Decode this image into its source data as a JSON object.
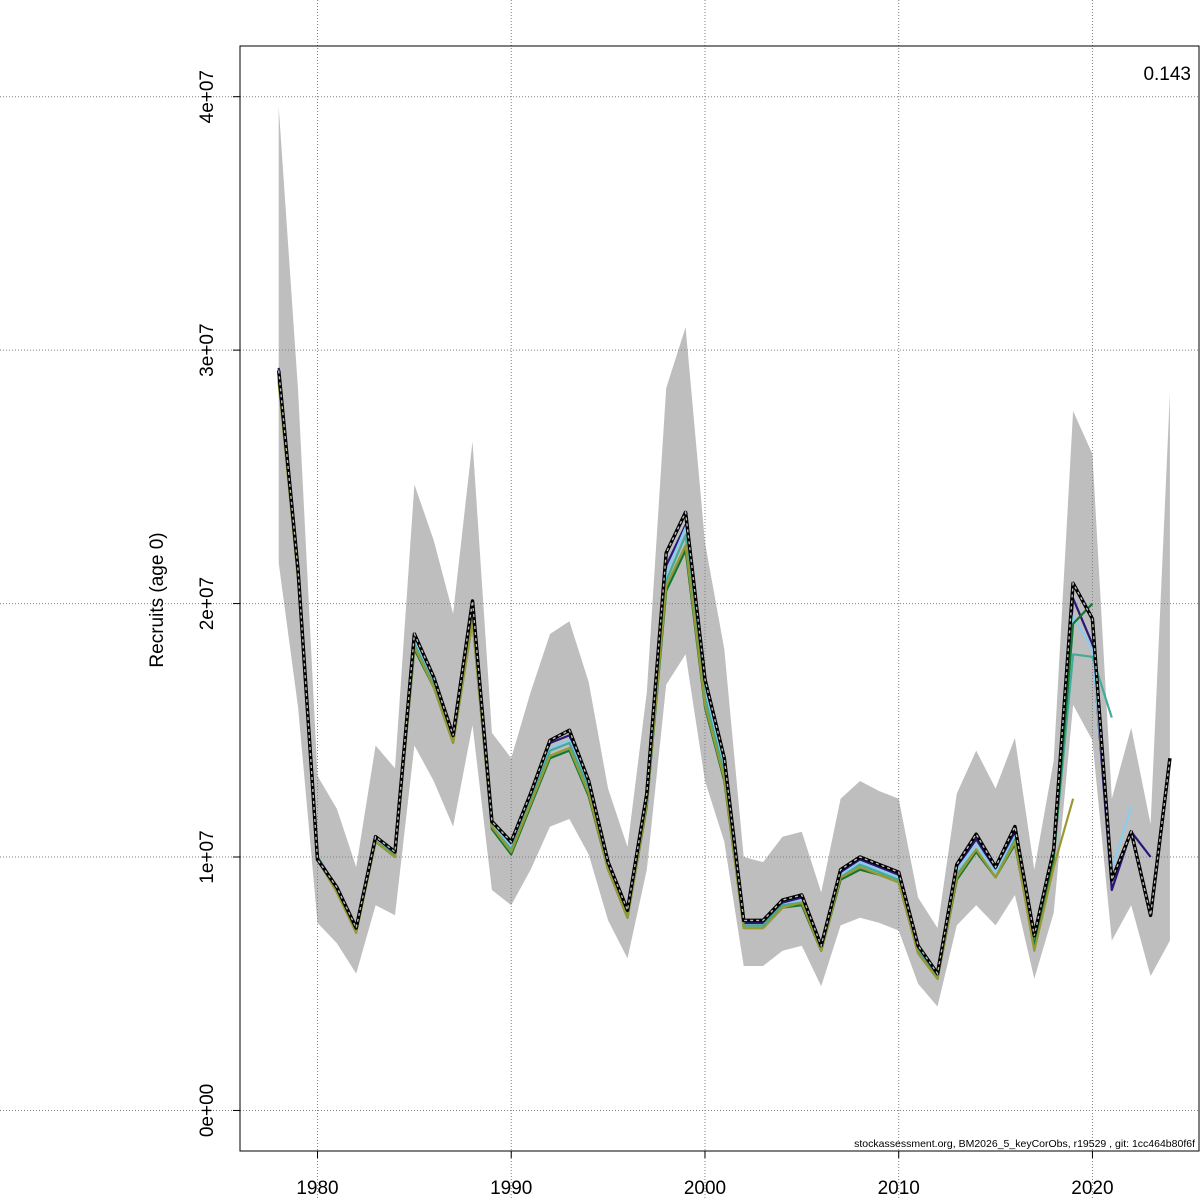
{
  "chart_data": {
    "type": "line",
    "title": "",
    "ylabel": "Recruits (age 0)",
    "xlabel": "",
    "xlim": [
      1976,
      2025.5
    ],
    "ylim": [
      -1600000,
      42000000
    ],
    "x_ticks": [
      1980,
      1990,
      2000,
      2010,
      2020
    ],
    "x_tick_labels": [
      "1980",
      "1990",
      "2000",
      "2010",
      "2020"
    ],
    "y_ticks": [
      0,
      10000000,
      20000000,
      30000000,
      40000000
    ],
    "y_tick_labels": [
      "0e+00",
      "1e+07",
      "2e+07",
      "3e+07",
      "4e+07"
    ],
    "grid": true,
    "corner_label": "0.143",
    "footer": "stockassessment.org, BM2026_5_keyCorObs, r19529 , git: 1cc464b80f6f",
    "colors": {
      "band": "#bebebe",
      "base": "#000000",
      "base_overlay": "#bdbdbd",
      "grid": "#808080"
    },
    "confidence_band": {
      "name": "",
      "x": [
        1978,
        1979,
        1980,
        1981,
        1982,
        1983,
        1984,
        1985,
        1986,
        1987,
        1988,
        1989,
        1990,
        1991,
        1992,
        1993,
        1994,
        1995,
        1996,
        1997,
        1998,
        1999,
        2000,
        2001,
        2002,
        2003,
        2004,
        2005,
        2006,
        2007,
        2008,
        2009,
        2010,
        2011,
        2012,
        2013,
        2014,
        2015,
        2016,
        2017,
        2018,
        2019,
        2020,
        2021,
        2022,
        2023,
        2024
      ],
      "lower": [
        21600000,
        15900000,
        7400000,
        6600000,
        5400000,
        8100000,
        7700000,
        14400000,
        13000000,
        11200000,
        15200000,
        8700000,
        8100000,
        9500000,
        11200000,
        11500000,
        10100000,
        7500000,
        6000000,
        9500000,
        16800000,
        18000000,
        13000000,
        10600000,
        5700000,
        5700000,
        6300000,
        6500000,
        4900000,
        7300000,
        7600000,
        7400000,
        7100000,
        5000000,
        4100000,
        7300000,
        8100000,
        7300000,
        8500000,
        5200000,
        7800000,
        16000000,
        14600000,
        6700000,
        8100000,
        5300000,
        6700000
      ],
      "upper": [
        39600000,
        28400000,
        13200000,
        11900000,
        9600000,
        14400000,
        13500000,
        24700000,
        22500000,
        19600000,
        26400000,
        14900000,
        13900000,
        16500000,
        18800000,
        19300000,
        16900000,
        12700000,
        10400000,
        16500000,
        28500000,
        30900000,
        22400000,
        18200000,
        10000000,
        9800000,
        10800000,
        11000000,
        8600000,
        12300000,
        13000000,
        12600000,
        12300000,
        8400000,
        7200000,
        12500000,
        14200000,
        12700000,
        14700000,
        9500000,
        13800000,
        27600000,
        25900000,
        12300000,
        15100000,
        11300000,
        28300000
      ]
    },
    "series": [
      {
        "name": "",
        "color": "#000000",
        "dashed": true,
        "x": [
          1978,
          1979,
          1980,
          1981,
          1982,
          1983,
          1984,
          1985,
          1986,
          1987,
          1988,
          1989,
          1990,
          1991,
          1992,
          1993,
          1994,
          1995,
          1996,
          1997,
          1998,
          1999,
          2000,
          2001,
          2002,
          2003,
          2004,
          2005,
          2006,
          2007,
          2008,
          2009,
          2010,
          2011,
          2012,
          2013,
          2014,
          2015,
          2016,
          2017,
          2018,
          2019,
          2020,
          2021,
          2022,
          2023,
          2024
        ],
        "values": [
          29200000,
          21300000,
          9900000,
          8800000,
          7200000,
          10800000,
          10200000,
          18800000,
          17100000,
          14800000,
          20100000,
          11400000,
          10600000,
          12500000,
          14600000,
          15000000,
          13000000,
          9800000,
          7900000,
          12500000,
          22000000,
          23600000,
          17000000,
          13900000,
          7500000,
          7500000,
          8300000,
          8500000,
          6500000,
          9500000,
          10000000,
          9700000,
          9400000,
          6500000,
          5400000,
          9700000,
          10900000,
          9600000,
          11200000,
          6900000,
          10300000,
          20800000,
          19400000,
          9100000,
          11000000,
          7700000,
          13900000
        ]
      },
      {
        "name": "",
        "color": "#2b1578",
        "dashed": false,
        "x": [
          1978,
          1979,
          1980,
          1981,
          1982,
          1983,
          1984,
          1985,
          1986,
          1987,
          1988,
          1989,
          1990,
          1991,
          1992,
          1993,
          1994,
          1995,
          1996,
          1997,
          1998,
          1999,
          2000,
          2001,
          2002,
          2003,
          2004,
          2005,
          2006,
          2007,
          2008,
          2009,
          2010,
          2011,
          2012,
          2013,
          2014,
          2015,
          2016,
          2017,
          2018,
          2019,
          2020,
          2021,
          2022,
          2023
        ],
        "values": [
          29300000,
          21200000,
          10000000,
          8800000,
          7100000,
          10700000,
          10100000,
          18700000,
          17000000,
          14700000,
          19900000,
          11300000,
          10500000,
          12400000,
          14500000,
          14800000,
          12900000,
          9700000,
          7800000,
          12400000,
          21500000,
          23100000,
          16800000,
          13700000,
          7400000,
          7400000,
          8200000,
          8400000,
          6400000,
          9400000,
          9900000,
          9600000,
          9300000,
          6400000,
          5300000,
          9600000,
          10700000,
          9500000,
          11000000,
          6800000,
          10200000,
          20200000,
          18400000,
          8700000,
          11000000,
          10000000
        ]
      },
      {
        "name": "",
        "color": "#88ccee",
        "dashed": false,
        "x": [
          1978,
          1979,
          1980,
          1981,
          1982,
          1983,
          1984,
          1985,
          1986,
          1987,
          1988,
          1989,
          1990,
          1991,
          1992,
          1993,
          1994,
          1995,
          1996,
          1997,
          1998,
          1999,
          2000,
          2001,
          2002,
          2003,
          2004,
          2005,
          2006,
          2007,
          2008,
          2009,
          2010,
          2011,
          2012,
          2013,
          2014,
          2015,
          2016,
          2017,
          2018,
          2019,
          2020,
          2021,
          2022
        ],
        "values": [
          29000000,
          21100000,
          10000000,
          8700000,
          7100000,
          10700000,
          10100000,
          18600000,
          16900000,
          14700000,
          19700000,
          11300000,
          10400000,
          12300000,
          14300000,
          14600000,
          12800000,
          9700000,
          7800000,
          12300000,
          21200000,
          23000000,
          16500000,
          13500000,
          7300000,
          7300000,
          8100000,
          8300000,
          6400000,
          9300000,
          9800000,
          9500000,
          9200000,
          6400000,
          5200000,
          9500000,
          10500000,
          9400000,
          10800000,
          6800000,
          10100000,
          19500000,
          18200000,
          9500000,
          12000000
        ]
      },
      {
        "name": "",
        "color": "#44aa99",
        "dashed": false,
        "x": [
          1978,
          1979,
          1980,
          1981,
          1982,
          1983,
          1984,
          1985,
          1986,
          1987,
          1988,
          1989,
          1990,
          1991,
          1992,
          1993,
          1994,
          1995,
          1996,
          1997,
          1998,
          1999,
          2000,
          2001,
          2002,
          2003,
          2004,
          2005,
          2006,
          2007,
          2008,
          2009,
          2010,
          2011,
          2012,
          2013,
          2014,
          2015,
          2016,
          2017,
          2018,
          2019,
          2020,
          2021
        ],
        "values": [
          28900000,
          21000000,
          10000000,
          8700000,
          7100000,
          10600000,
          10100000,
          18400000,
          16800000,
          14600000,
          19500000,
          11200000,
          10300000,
          12200000,
          14200000,
          14500000,
          12700000,
          9600000,
          7700000,
          12200000,
          20900000,
          22700000,
          16300000,
          13300000,
          7300000,
          7300000,
          8100000,
          8200000,
          6300000,
          9200000,
          9700000,
          9400000,
          9100000,
          6300000,
          5200000,
          9300000,
          10300000,
          9200000,
          10700000,
          6700000,
          10000000,
          18000000,
          17900000,
          15500000
        ]
      },
      {
        "name": "",
        "color": "#117733",
        "dashed": false,
        "x": [
          1978,
          1979,
          1980,
          1981,
          1982,
          1983,
          1984,
          1985,
          1986,
          1987,
          1988,
          1989,
          1990,
          1991,
          1992,
          1993,
          1994,
          1995,
          1996,
          1997,
          1998,
          1999,
          2000,
          2001,
          2002,
          2003,
          2004,
          2005,
          2006,
          2007,
          2008,
          2009,
          2010,
          2011,
          2012,
          2013,
          2014,
          2015,
          2016,
          2017,
          2018,
          2019,
          2020
        ],
        "values": [
          28800000,
          21000000,
          10000000,
          8700000,
          7100000,
          10600000,
          10000000,
          18200000,
          16700000,
          14500000,
          19300000,
          11100000,
          10100000,
          12000000,
          13900000,
          14200000,
          12400000,
          9500000,
          7600000,
          12000000,
          20500000,
          22100000,
          15900000,
          13000000,
          7200000,
          7200000,
          8000000,
          8100000,
          6300000,
          9100000,
          9500000,
          9300000,
          9000000,
          6200000,
          5200000,
          9100000,
          10200000,
          9200000,
          10500000,
          6500000,
          9900000,
          19200000,
          20000000
        ]
      },
      {
        "name": "",
        "color": "#999933",
        "dashed": false,
        "x": [
          1978,
          1979,
          1980,
          1981,
          1982,
          1983,
          1984,
          1985,
          1986,
          1987,
          1988,
          1989,
          1990,
          1991,
          1992,
          1993,
          1994,
          1995,
          1996,
          1997,
          1998,
          1999,
          2000,
          2001,
          2002,
          2003,
          2004,
          2005,
          2006,
          2007,
          2008,
          2009,
          2010,
          2011,
          2012,
          2013,
          2014,
          2015,
          2016,
          2017,
          2018,
          2019
        ],
        "values": [
          28700000,
          20900000,
          9900000,
          8600000,
          7000000,
          10600000,
          10000000,
          18300000,
          16700000,
          14500000,
          19300000,
          11200000,
          10200000,
          12100000,
          14000000,
          14300000,
          12500000,
          9500000,
          7600000,
          12100000,
          20700000,
          22300000,
          16000000,
          13100000,
          7200000,
          7200000,
          8000000,
          8200000,
          6300000,
          9200000,
          9600000,
          9300000,
          9000000,
          6200000,
          5200000,
          9200000,
          10300000,
          9200000,
          10600000,
          6300000,
          9600000,
          12300000
        ]
      }
    ]
  }
}
